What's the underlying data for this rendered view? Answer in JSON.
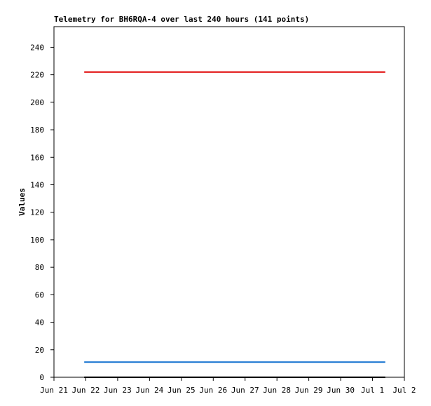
{
  "chart_data": {
    "type": "line",
    "title": "Telemetry for BH6RQA-4 over last 240 hours (141 points)",
    "y_label": "Values",
    "xlim": [
      0,
      11
    ],
    "xticks": [
      {
        "value": 0,
        "label": "Jun 21"
      },
      {
        "value": 1,
        "label": "Jun 22"
      },
      {
        "value": 2,
        "label": "Jun 23"
      },
      {
        "value": 3,
        "label": "Jun 24"
      },
      {
        "value": 4,
        "label": "Jun 25"
      },
      {
        "value": 5,
        "label": "Jun 26"
      },
      {
        "value": 6,
        "label": "Jun 27"
      },
      {
        "value": 7,
        "label": "Jun 28"
      },
      {
        "value": 8,
        "label": "Jun 29"
      },
      {
        "value": 9,
        "label": "Jun 30"
      },
      {
        "value": 10,
        "label": "Jul 1"
      },
      {
        "value": 11,
        "label": "Jul 2"
      }
    ],
    "ylim": [
      0,
      255
    ],
    "yticks": [
      0,
      20,
      40,
      60,
      80,
      100,
      120,
      140,
      160,
      180,
      200,
      220,
      240
    ],
    "series": [
      {
        "color": "#e00000",
        "x": [
          0.95,
          10.4
        ],
        "values": [
          222,
          222
        ]
      },
      {
        "color": "#0066cc",
        "x": [
          0.95,
          10.4
        ],
        "values": [
          11,
          11
        ]
      },
      {
        "color": "#000000",
        "x": [
          0.95,
          10.4
        ],
        "values": [
          0,
          0
        ]
      }
    ]
  }
}
